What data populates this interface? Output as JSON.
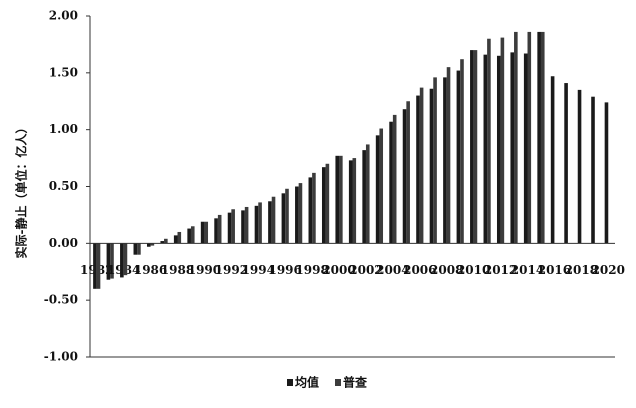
{
  "chart_data": {
    "type": "bar",
    "y_axis_label": "实际-静止（单位：亿人）",
    "categories": [
      "1982",
      null,
      "1984",
      null,
      "1986",
      null,
      "1988",
      null,
      "1990",
      null,
      "1992",
      null,
      "1994",
      null,
      "1996",
      null,
      "1998",
      null,
      "2000",
      null,
      "2002",
      null,
      "2004",
      null,
      "2006",
      null,
      "2008",
      null,
      "2010",
      null,
      "2012",
      null,
      "2014",
      null,
      "2016",
      null,
      "2018",
      null,
      "2020"
    ],
    "series": [
      {
        "name": "均值",
        "color": "#1a1a1a",
        "values": [
          -0.4,
          -0.32,
          -0.3,
          -0.1,
          -0.03,
          0.02,
          0.07,
          0.13,
          0.19,
          0.22,
          0.27,
          0.29,
          0.33,
          0.37,
          0.44,
          0.5,
          0.58,
          0.67,
          0.77,
          0.73,
          0.82,
          0.95,
          1.07,
          1.18,
          1.3,
          1.36,
          1.46,
          1.52,
          1.7,
          1.66,
          1.65,
          1.68,
          1.67,
          1.86,
          1.47,
          1.41,
          1.35,
          1.29,
          1.24
        ]
      },
      {
        "name": "普查",
        "color": "#3c3c3c",
        "values": [
          -0.4,
          -0.31,
          -0.28,
          -0.1,
          -0.02,
          0.04,
          0.1,
          0.15,
          0.19,
          0.25,
          0.3,
          0.32,
          0.36,
          0.41,
          0.48,
          0.53,
          0.62,
          0.7,
          0.77,
          0.75,
          0.87,
          1.01,
          1.13,
          1.25,
          1.37,
          1.46,
          1.55,
          1.62,
          1.7,
          1.8,
          1.81,
          1.86,
          1.86,
          1.86,
          null,
          null,
          null,
          null,
          null
        ]
      }
    ],
    "ylim": [
      -1,
      2
    ],
    "yticks": [
      {
        "value": -1,
        "label": "-1.00"
      },
      {
        "value": -0.5,
        "label": "-0.50"
      },
      {
        "value": 0,
        "label": "0.00"
      },
      {
        "value": 0.5,
        "label": "0.50"
      },
      {
        "value": 1,
        "label": "1.00"
      },
      {
        "value": 1.5,
        "label": "1.50"
      },
      {
        "value": 2,
        "label": "2.00"
      }
    ],
    "grid": false
  }
}
